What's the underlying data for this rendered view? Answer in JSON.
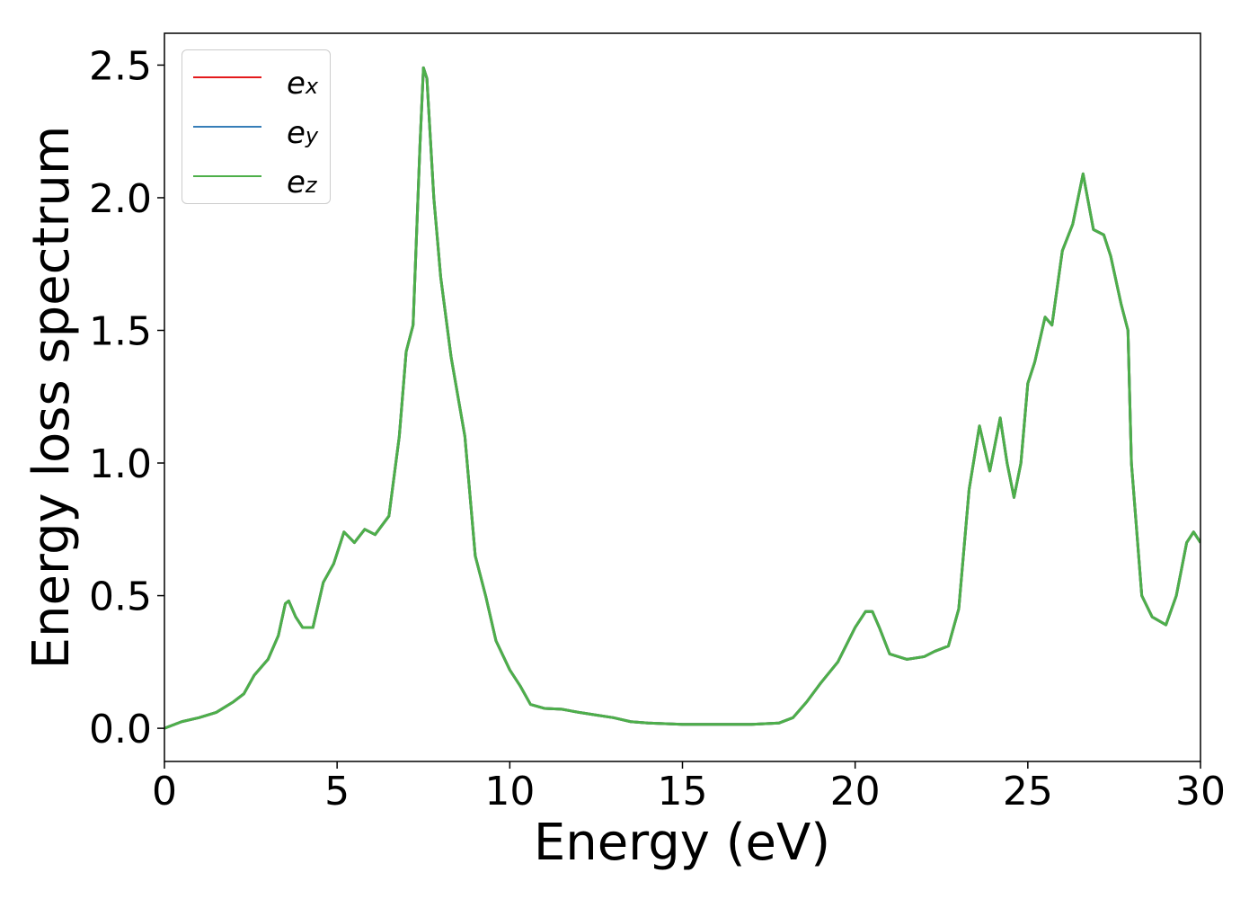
{
  "chart_data": {
    "type": "line",
    "xlabel": "Energy (eV)",
    "ylabel": "Energy loss spectrum",
    "x": [
      0,
      0.5,
      1,
      1.5,
      2,
      2.3,
      2.6,
      3,
      3.3,
      3.5,
      3.6,
      3.8,
      4,
      4.3,
      4.6,
      4.9,
      5.2,
      5.5,
      5.8,
      6.1,
      6.5,
      6.8,
      7,
      7.2,
      7.4,
      7.5,
      7.6,
      7.8,
      8,
      8.3,
      8.7,
      9,
      9.3,
      9.6,
      10,
      10.3,
      10.6,
      11,
      11.5,
      12,
      12.5,
      13,
      13.5,
      14,
      15,
      16,
      17,
      17.8,
      18.2,
      18.6,
      19,
      19.5,
      20,
      20.3,
      20.5,
      20.7,
      21,
      21.5,
      22,
      22.3,
      22.7,
      23,
      23.3,
      23.6,
      23.9,
      24.2,
      24.4,
      24.6,
      24.8,
      25,
      25.2,
      25.5,
      25.7,
      26,
      26.3,
      26.6,
      26.9,
      27.2,
      27.4,
      27.7,
      27.9,
      28,
      28.3,
      28.6,
      29,
      29.3,
      29.6,
      29.8,
      30
    ],
    "series": [
      {
        "name": "ex",
        "color": "#e41a1c",
        "values": [
          0,
          0.025,
          0.04,
          0.06,
          0.1,
          0.13,
          0.2,
          0.26,
          0.35,
          0.47,
          0.48,
          0.42,
          0.38,
          0.38,
          0.55,
          0.62,
          0.74,
          0.7,
          0.75,
          0.73,
          0.8,
          1.1,
          1.42,
          1.52,
          2.2,
          2.49,
          2.45,
          2.0,
          1.7,
          1.4,
          1.1,
          0.65,
          0.5,
          0.33,
          0.22,
          0.16,
          0.09,
          0.075,
          0.072,
          0.06,
          0.05,
          0.04,
          0.025,
          0.02,
          0.015,
          0.015,
          0.015,
          0.02,
          0.04,
          0.1,
          0.17,
          0.25,
          0.38,
          0.44,
          0.44,
          0.38,
          0.28,
          0.26,
          0.27,
          0.29,
          0.31,
          0.45,
          0.9,
          1.14,
          0.97,
          1.17,
          1.0,
          0.87,
          1.0,
          1.3,
          1.38,
          1.55,
          1.52,
          1.8,
          1.9,
          2.09,
          1.88,
          1.86,
          1.78,
          1.6,
          1.5,
          1.0,
          0.5,
          0.42,
          0.39,
          0.5,
          0.7,
          0.74,
          0.7
        ]
      },
      {
        "name": "ey",
        "color": "#377eb8",
        "values": [
          0,
          0.025,
          0.04,
          0.06,
          0.1,
          0.13,
          0.2,
          0.26,
          0.35,
          0.47,
          0.48,
          0.42,
          0.38,
          0.38,
          0.55,
          0.62,
          0.74,
          0.7,
          0.75,
          0.73,
          0.8,
          1.1,
          1.42,
          1.52,
          2.2,
          2.49,
          2.45,
          2.0,
          1.7,
          1.4,
          1.1,
          0.65,
          0.5,
          0.33,
          0.22,
          0.16,
          0.09,
          0.075,
          0.072,
          0.06,
          0.05,
          0.04,
          0.025,
          0.02,
          0.015,
          0.015,
          0.015,
          0.02,
          0.04,
          0.1,
          0.17,
          0.25,
          0.38,
          0.44,
          0.44,
          0.38,
          0.28,
          0.26,
          0.27,
          0.29,
          0.31,
          0.45,
          0.9,
          1.14,
          0.97,
          1.17,
          1.0,
          0.87,
          1.0,
          1.3,
          1.38,
          1.55,
          1.52,
          1.8,
          1.9,
          2.09,
          1.88,
          1.86,
          1.78,
          1.6,
          1.5,
          1.0,
          0.5,
          0.42,
          0.39,
          0.5,
          0.7,
          0.74,
          0.7
        ]
      },
      {
        "name": "ez",
        "color": "#4daf4a",
        "values": [
          0,
          0.025,
          0.04,
          0.06,
          0.1,
          0.13,
          0.2,
          0.26,
          0.35,
          0.47,
          0.48,
          0.42,
          0.38,
          0.38,
          0.55,
          0.62,
          0.74,
          0.7,
          0.75,
          0.73,
          0.8,
          1.1,
          1.42,
          1.52,
          2.2,
          2.49,
          2.45,
          2.0,
          1.7,
          1.4,
          1.1,
          0.65,
          0.5,
          0.33,
          0.22,
          0.16,
          0.09,
          0.075,
          0.072,
          0.06,
          0.05,
          0.04,
          0.025,
          0.02,
          0.015,
          0.015,
          0.015,
          0.02,
          0.04,
          0.1,
          0.17,
          0.25,
          0.38,
          0.44,
          0.44,
          0.38,
          0.28,
          0.26,
          0.27,
          0.29,
          0.31,
          0.45,
          0.9,
          1.14,
          0.97,
          1.17,
          1.0,
          0.87,
          1.0,
          1.3,
          1.38,
          1.55,
          1.52,
          1.8,
          1.9,
          2.09,
          1.88,
          1.86,
          1.78,
          1.6,
          1.5,
          1.0,
          0.5,
          0.42,
          0.39,
          0.5,
          0.7,
          0.74,
          0.7
        ]
      }
    ],
    "xlim": [
      0,
      30
    ],
    "xticks": [
      0,
      5,
      10,
      15,
      20,
      25,
      30
    ],
    "ylim": [
      -0.125,
      2.62
    ],
    "yticks": [
      {
        "value": 0,
        "label": "0.0"
      },
      0.5,
      {
        "value": 1,
        "label": "1.0"
      },
      1.5,
      {
        "value": 2,
        "label": "2.0"
      },
      2.5
    ],
    "legend": "upper left"
  }
}
